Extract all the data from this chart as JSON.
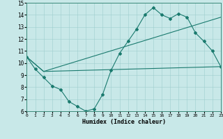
{
  "xlabel": "Humidex (Indice chaleur)",
  "xlim": [
    0,
    23
  ],
  "ylim": [
    6,
    15
  ],
  "xticks": [
    0,
    1,
    2,
    3,
    4,
    5,
    6,
    7,
    8,
    9,
    10,
    11,
    12,
    13,
    14,
    15,
    16,
    17,
    18,
    19,
    20,
    21,
    22,
    23
  ],
  "yticks": [
    6,
    7,
    8,
    9,
    10,
    11,
    12,
    13,
    14,
    15
  ],
  "bg_color": "#c8e8e8",
  "line_color": "#1a7a6e",
  "line1_x": [
    0,
    1,
    2,
    3,
    4,
    5,
    6,
    7,
    8,
    9,
    10,
    11,
    12,
    13,
    14,
    15,
    16,
    17,
    18,
    19,
    20,
    21,
    22,
    23
  ],
  "line1_y": [
    10.5,
    9.5,
    8.8,
    8.1,
    7.8,
    6.8,
    6.4,
    6.0,
    6.2,
    7.4,
    9.4,
    10.8,
    11.8,
    12.8,
    14.0,
    14.6,
    14.0,
    13.7,
    14.1,
    13.8,
    12.5,
    11.8,
    11.0,
    9.7
  ],
  "line2_x": [
    0,
    2,
    23
  ],
  "line2_y": [
    10.5,
    9.3,
    9.7
  ],
  "line3_x": [
    0,
    2,
    23
  ],
  "line3_y": [
    10.5,
    9.3,
    13.8
  ]
}
